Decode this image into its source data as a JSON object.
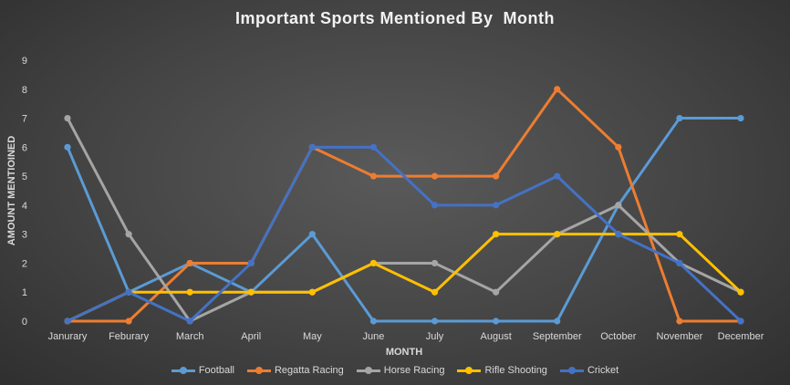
{
  "chart_data": {
    "type": "line",
    "title": "Important Sports Mentioned By  Month",
    "xlabel": "MONTH",
    "ylabel": "AMOUNT MENTIOINED",
    "ylim": [
      0,
      9
    ],
    "yticks": [
      0,
      1,
      2,
      3,
      4,
      5,
      6,
      7,
      8,
      9
    ],
    "grid": false,
    "legend_position": "bottom",
    "categories": [
      "Janurary",
      "Feburary",
      "March",
      "April",
      "May",
      "June",
      "July",
      "August",
      "September",
      "October",
      "November",
      "December"
    ],
    "series": [
      {
        "name": "Football",
        "color": "#5b9bd5",
        "values": [
          6,
          1,
          2,
          1,
          3,
          0,
          0,
          0,
          0,
          4,
          7,
          7
        ]
      },
      {
        "name": "Regatta Racing",
        "color": "#ed7d31",
        "values": [
          0,
          0,
          2,
          2,
          6,
          5,
          5,
          5,
          8,
          6,
          0,
          0
        ]
      },
      {
        "name": "Horse Racing",
        "color": "#a5a5a5",
        "values": [
          7,
          3,
          0,
          1,
          1,
          2,
          2,
          1,
          3,
          4,
          2,
          1
        ]
      },
      {
        "name": "Rifle Shooting",
        "color": "#ffc000",
        "values": [
          0,
          1,
          1,
          1,
          1,
          2,
          1,
          3,
          3,
          3,
          3,
          1
        ]
      },
      {
        "name": "Cricket",
        "color": "#4472c4",
        "values": [
          0,
          1,
          0,
          2,
          6,
          6,
          4,
          4,
          5,
          3,
          2,
          0
        ]
      }
    ]
  }
}
